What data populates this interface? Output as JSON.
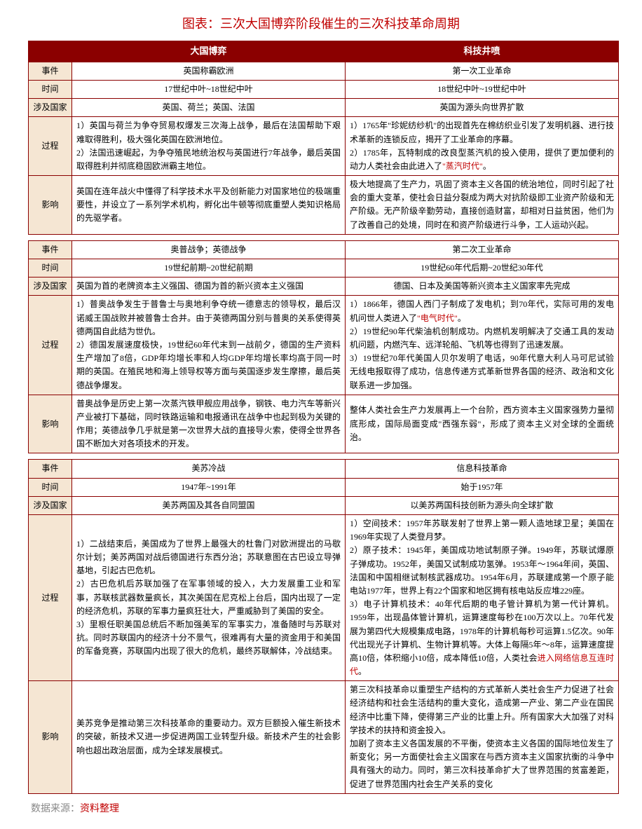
{
  "title": "图表：三次大国博弈阶段催生的三次科技革命周期",
  "headers": {
    "left": "大国博弈",
    "right": "科技井喷"
  },
  "rowLabels": {
    "event": "事件",
    "time": "时间",
    "countries": "涉及国家",
    "process": "过程",
    "impact": "影响"
  },
  "sections": [
    {
      "event": {
        "left": "英国称霸欧洲",
        "right": "第一次工业革命"
      },
      "time": {
        "left": "17世纪中叶~18世纪中叶",
        "right": "18世纪中叶~19世纪中叶"
      },
      "countries": {
        "left": "英国、荷兰；英国、法国",
        "right": "英国为源头向世界扩散"
      },
      "process": {
        "left": "1）英国与荷兰为争夺贸易权爆发三次海上战争，最后在法国帮助下艰难取得胜利，极大强化英国在欧洲地位。\n2）法国迅速崛起，为争夺殖民地统治权与英国进行7年战争，最后英国取得胜利并彻底稳固欧洲霸主地位。",
        "rightPrefix": "1）1765年\"珍妮纺纱机\"的出现首先在棉纺织业引发了发明机器、进行技术革新的连锁反应，揭开了工业革命的序幕。\n2）1785年，瓦特制成的改良型蒸汽机的投入使用，提供了更加便利的动力人类社会由此进入了",
        "rightEmph": "\"蒸汽时代\"",
        "rightSuffix": "。"
      },
      "impact": {
        "left": "英国在连年战火中懂得了科学技术水平及创新能力对国家地位的极端重要性，并设立了一系列学术机构，孵化出牛顿等彻底重塑人类知识格局的先驱学者。",
        "right": "极大地提高了生产力，巩固了资本主义各国的统治地位，同时引起了社会的重大变革，使社会日益分裂成为两大对抗阶级即工业资产阶级和无产阶级。无产阶级辛勤劳动，直接创造财富，却相对日益贫困，他们为了改善自己的处境，同时在和资产阶级进行斗争，工人运动兴起。"
      }
    },
    {
      "event": {
        "left": "奥普战争；英德战争",
        "right": "第二次工业革命"
      },
      "time": {
        "left": "19世纪前期~20世纪前期",
        "right": "19世纪60年代后期~20世纪30年代"
      },
      "countries": {
        "left": "英国为首的老牌资本主义强国、德国为首的新兴资本主义强国",
        "right": "德国、日本及美国等新兴资本主义国家率先完成"
      },
      "process": {
        "left": "1）普奥战争发生于普鲁士与奥地利争夺统一德意志的领导权，最后汉诺威王国战败并被普鲁士合并。由于英德两国分别与普奥的关系使得英德两国自此结为世仇。\n2）德国发展速度极快，19世纪60年代末到一战前夕，德国的生产资料生产增加了8倍，GDP年均增长率和人均GDP年均增长率均高于同一时期的英国。在殖民地和海上领导权等方面与英国逐步发生摩擦，最后英德战争爆发。",
        "rightPrefix": "1）1866年，德国人西门子制成了发电机；到70年代，实际可用的发电机问世人类进入了",
        "rightEmph": "\"电气时代\"",
        "rightSuffix": "。\n2）19世纪90年代柴油机创制成功。内燃机发明解决了交通工具的发动机问题，内燃汽车、远洋轮船、飞机等也得到了迅速发展。\n3）19世纪70年代美国人贝尔发明了电话，90年代意大利人马可尼试验无线电报取得了成功，信息传递方式革新世界各国的经济、政治和文化联系进一步加强。"
      },
      "impact": {
        "left": "普奥战争是历史上第一次蒸汽铁甲舰应用战争，钢铁、电力汽车等新兴产业被打下基础，同时铁路运输和电报通讯在战争中也起到极为关键的作用；英德战争几乎就是第一次世界大战的直接导火索，使得全世界各国不断加大对各项技术的开发。",
        "right": "整体人类社会生产力发展再上一个台阶，西方资本主义国家强势力量彻底形成，国际局面变成\"西强东弱\"，形成了资本主义对全球的全面统治。"
      }
    },
    {
      "event": {
        "left": "美苏冷战",
        "right": "信息科技革命"
      },
      "time": {
        "left": "1947年~1991年",
        "right": "始于1957年"
      },
      "countries": {
        "left": "美苏两国及其各自同盟国",
        "right": "以美苏两国科技创新为源头向全球扩散"
      },
      "process": {
        "left": "1）二战结束后，美国成为了世界上最强大的杜鲁门对欧洲提出的马歇尔计划；美苏两国对战后德国进行东西分治；苏联意图在古巴设立导弹基地，引起古巴危机。\n2）古巴危机后苏联加强了在军事领域的投入，大力发展重工业和军事，苏联核武器数量疯长，其次美国在尼克松上台后，国内出现了一定的经济危机，苏联的军事力量疯狂壮大，严重威胁到了美国的安全。\n3）里根任职美国总统后不断加强美军的军事实力，准备随时与苏联对抗。同时苏联国内的经济十分不景气，很难再有大量的资金用于和美国的军备竞赛，苏联国内出现了很大的危机，最终苏联解体，冷战结束。",
        "rightPrefix": "1）空间技术：1957年苏联发射了世界上第一颗人造地球卫星；美国在1969年实现了人类登月梦。\n2）原子技术：1945年，美国成功地试制原子弹。1949年，苏联试爆原子弹成功。1952年，美国又试制成功氢弹。1953年～1964年间，英国、法国和中国相继试制核武器成功。1954年6月，苏联建成第一个原子能电站1977年，世界上有22个国家和地区拥有核电站反应堆229座。\n3）电子计算机技术：40年代后期的电子管计算机为第一代计算机。1959年，出现晶体管计算机，运算速度每秒在100万次以上。70年代发展为第四代大规模集成电路，1978年的计算机每秒可运算1.5亿次。90年代出现光子计算机、生物计算机等。大体上每隔5年～8年，运算速度提高10倍，体积缩小10倍，成本降低10倍，人类社会",
        "rightEmph": "进入网络信息互连时代",
        "rightSuffix": "。"
      },
      "impact": {
        "left": "美苏竞争是推动第三次科技革命的重要动力。双方巨额投入催生新技术的突破，新技术又进一步促进两国工业转型升级。新技术产生的社会影响也超出政治层面，成为全球发展模式。",
        "right": "第三次科技革命以重塑生产结构的方式革新人类社会生产力促进了社会经济结构和社会生活结构的重大变化，造成第一产业、第二产业在国民经济中比重下降，使得第三产业的比重上升。所有国家大大加强了对科学技术的扶持和资金投入。\n加剧了资本主义各国发展的不平衡，使资本主义各国的国际地位发生了新变化；另一方面使社会主义国家在与西方资本主义国家抗衡的斗争中具有强大的动力。同时，第三次科技革命扩大了世界范围的贫富差距，促进了世界范围内社会生产关系的变化"
      }
    }
  ],
  "source": {
    "label": "数据来源：",
    "value": "资料整理"
  }
}
